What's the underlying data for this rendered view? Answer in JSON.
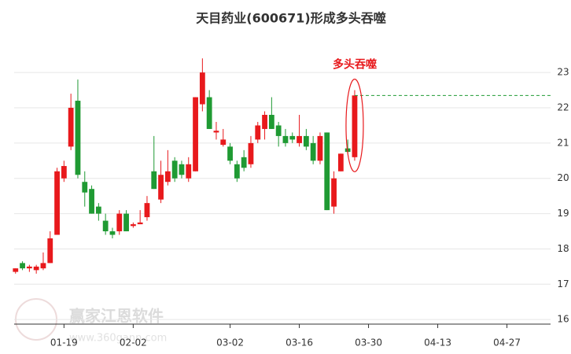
{
  "chart_data": {
    "type": "candlestick",
    "title": "天目药业(600671)形成多头吞噬",
    "annotation": "多头吞噬",
    "watermark": "赢家江恩软件",
    "watermark_url": "www.360gann.com",
    "x": [
      0,
      1,
      2,
      3,
      4,
      5,
      6,
      7,
      8,
      9,
      10,
      11,
      12,
      13,
      14,
      15,
      16,
      17,
      18,
      19,
      20,
      21,
      22,
      23,
      24,
      25,
      26,
      27,
      28,
      29,
      30,
      31,
      32,
      33,
      34,
      35,
      36,
      37,
      38,
      39,
      40,
      41,
      42,
      43,
      44,
      45,
      46,
      47,
      48,
      49
    ],
    "open": [
      17.35,
      17.6,
      17.45,
      17.4,
      17.45,
      17.6,
      18.4,
      20.0,
      20.9,
      22.2,
      19.9,
      19.7,
      19.2,
      18.8,
      18.5,
      18.5,
      19.0,
      18.65,
      18.7,
      18.9,
      20.2,
      19.4,
      19.9,
      20.5,
      20.4,
      20.0,
      20.2,
      22.1,
      22.3,
      21.3,
      20.95,
      20.9,
      20.4,
      20.6,
      20.4,
      21.1,
      21.4,
      21.8,
      21.5,
      21.2,
      21.2,
      21.0,
      21.2,
      21.0,
      20.5,
      21.3,
      19.2,
      20.2,
      20.85,
      20.6
    ],
    "high": [
      17.45,
      17.65,
      17.55,
      17.55,
      17.9,
      18.5,
      20.3,
      20.5,
      22.4,
      22.8,
      20.2,
      19.8,
      19.3,
      19.0,
      18.6,
      19.1,
      19.1,
      18.75,
      19.1,
      19.5,
      21.2,
      20.5,
      20.8,
      20.6,
      20.5,
      20.6,
      22.3,
      23.4,
      22.5,
      21.6,
      21.4,
      21.0,
      20.5,
      20.8,
      21.2,
      21.6,
      21.9,
      22.3,
      21.6,
      21.4,
      21.3,
      21.8,
      21.4,
      21.2,
      21.3,
      21.3,
      20.2,
      20.7,
      21.1,
      22.5
    ],
    "low": [
      17.3,
      17.4,
      17.35,
      17.3,
      17.4,
      17.6,
      18.4,
      19.9,
      20.8,
      20.0,
      19.2,
      19.0,
      18.8,
      18.4,
      18.3,
      18.4,
      18.5,
      18.6,
      18.7,
      18.8,
      19.7,
      19.3,
      19.8,
      19.9,
      20.0,
      19.9,
      20.2,
      21.9,
      21.4,
      21.1,
      20.9,
      20.4,
      19.9,
      20.2,
      20.3,
      21.0,
      21.1,
      21.4,
      20.9,
      20.9,
      21.0,
      20.9,
      20.8,
      20.4,
      20.4,
      19.1,
      19.0,
      20.2,
      20.7,
      20.5
    ],
    "close": [
      17.45,
      17.45,
      17.5,
      17.5,
      17.6,
      18.3,
      20.2,
      20.35,
      22.0,
      20.1,
      19.6,
      19.0,
      19.0,
      18.5,
      18.4,
      19.0,
      18.5,
      18.7,
      18.75,
      19.3,
      19.7,
      20.1,
      20.2,
      20.0,
      20.1,
      20.4,
      22.3,
      23.0,
      21.4,
      21.35,
      21.1,
      20.5,
      20.0,
      20.3,
      21.0,
      21.5,
      21.8,
      21.4,
      21.2,
      21.0,
      21.1,
      21.2,
      20.9,
      20.5,
      21.2,
      19.1,
      20.0,
      20.7,
      20.75,
      22.35
    ],
    "up_color": "#e8191c",
    "down_color": "#1f9a33",
    "line_color": "#1f9a33",
    "annotation_color": "#e8191c",
    "xlim": [
      -0.2,
      77.3
    ],
    "xticks": [
      {
        "value": 7,
        "label": "01-19"
      },
      {
        "value": 17,
        "label": "02-02"
      },
      {
        "value": 31,
        "label": "03-02"
      },
      {
        "value": 41,
        "label": "03-16"
      },
      {
        "value": 51,
        "label": "03-30"
      },
      {
        "value": 61,
        "label": "04-13"
      },
      {
        "value": 71,
        "label": "04-27"
      }
    ],
    "ylim": [
      15.87,
      23.94
    ],
    "yticks": [
      16,
      17,
      18,
      19,
      20,
      21,
      22,
      23
    ],
    "grid": true
  }
}
